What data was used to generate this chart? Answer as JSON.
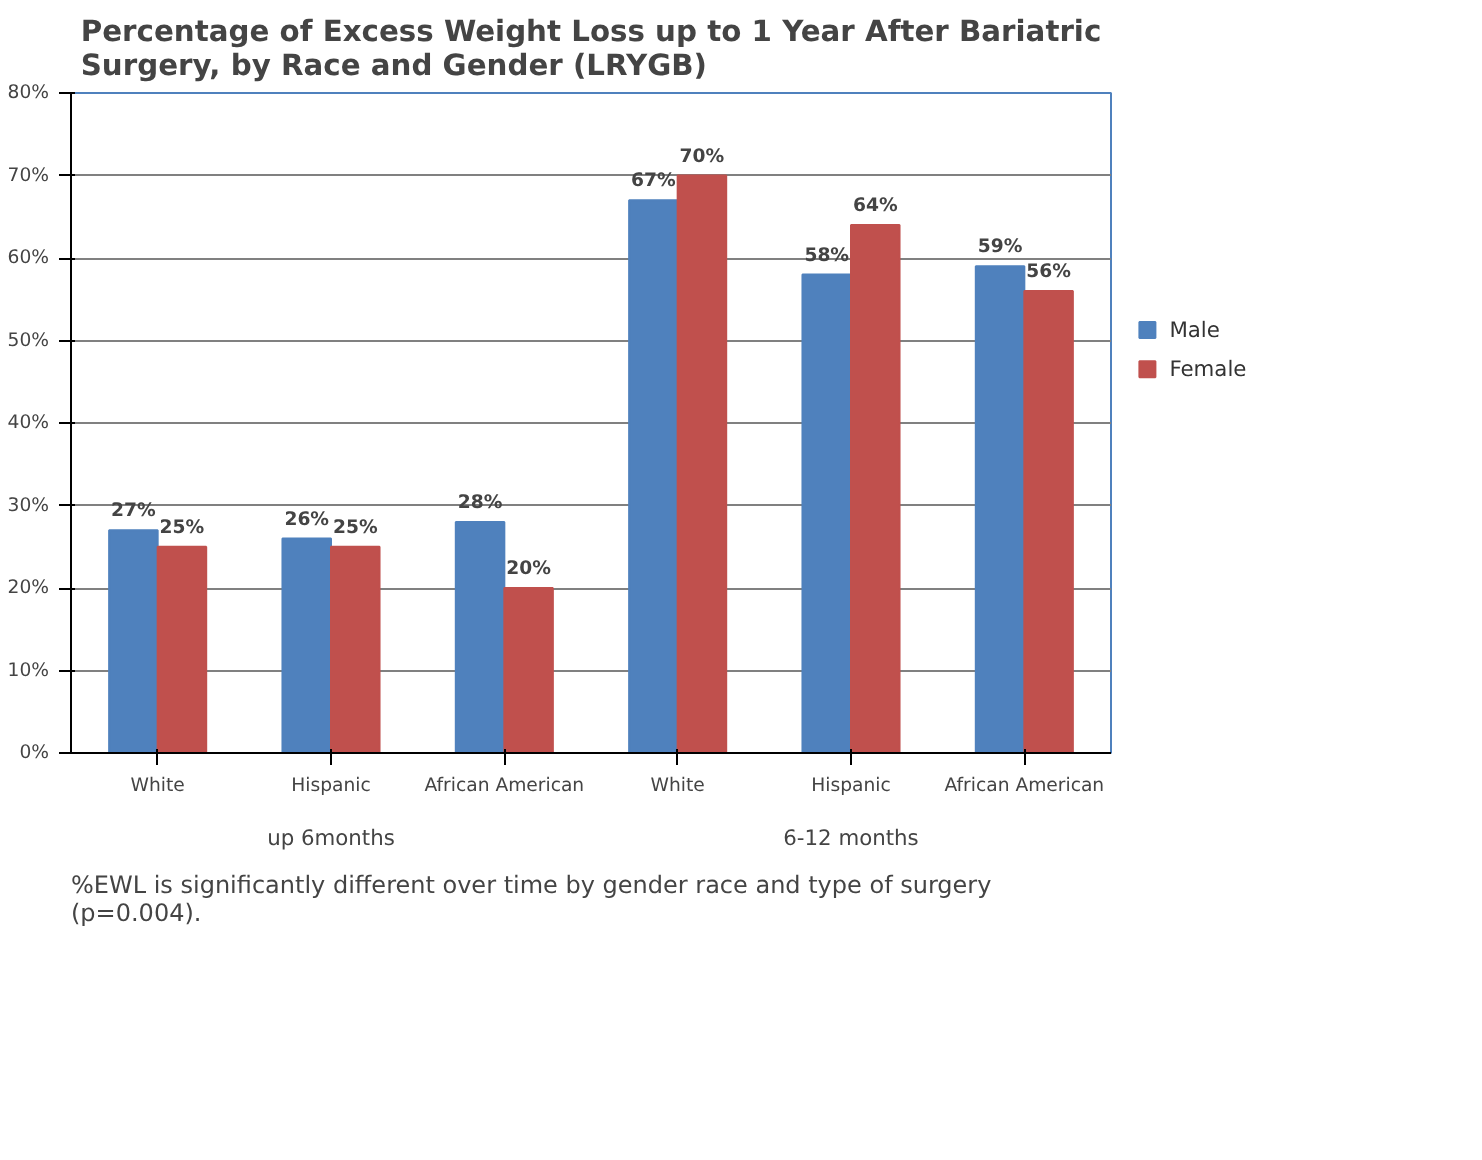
{
  "chart_data": {
    "type": "bar",
    "title": "Percentage of Excess Weight Loss up to 1 Year After Bariatric\nSurgery, by Race and Gender (LRYGB)",
    "categories": [
      "White",
      "Hispanic",
      "African American",
      "White",
      "Hispanic",
      "African American"
    ],
    "series": [
      {
        "name": "Male",
        "color": "#4f81bd",
        "values": [
          27,
          26,
          28,
          67,
          58,
          59
        ],
        "value_labels": [
          "27%",
          "26%",
          "28%",
          "67%",
          "58%",
          "59%"
        ]
      },
      {
        "name": "Female",
        "color": "#c0504d",
        "values": [
          25,
          25,
          20,
          70,
          64,
          56
        ],
        "value_labels": [
          "25%",
          "25%",
          "20%",
          "70%",
          "64%",
          "56%"
        ]
      }
    ],
    "ylim": [
      0,
      80
    ],
    "yticks": [
      {
        "value": 0,
        "label": "0%"
      },
      {
        "value": 10,
        "label": "10%"
      },
      {
        "value": 20,
        "label": "20%"
      },
      {
        "value": 30,
        "label": "30%"
      },
      {
        "value": 40,
        "label": "40%"
      },
      {
        "value": 50,
        "label": "50%"
      },
      {
        "value": 60,
        "label": "60%"
      },
      {
        "value": 70,
        "label": "70%"
      },
      {
        "value": 80,
        "label": "80%"
      }
    ],
    "grid": "y",
    "legend": "right",
    "annotations": [
      "up 6months",
      "6-12 months",
      "%EWL is significantly different over time by gender race and type of surgery\n(p=0.004)."
    ]
  }
}
